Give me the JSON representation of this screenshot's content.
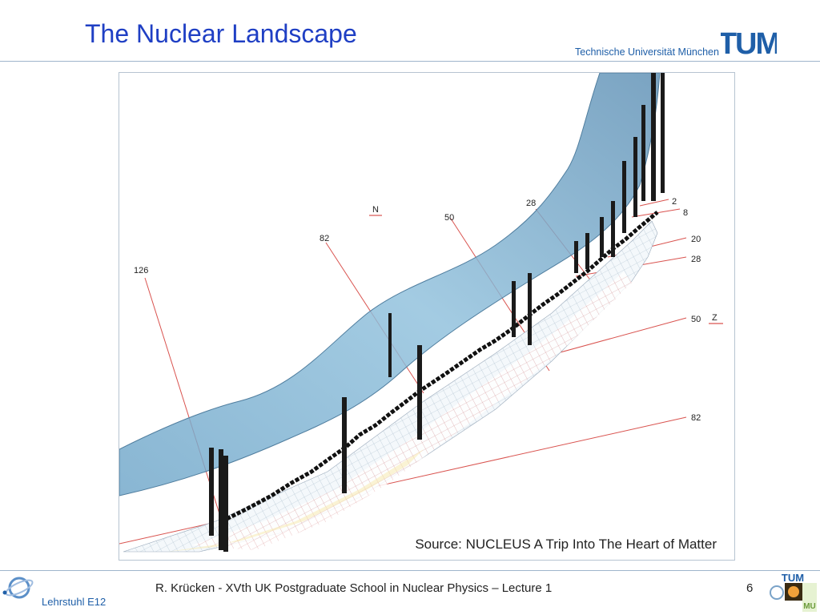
{
  "header": {
    "title": "The Nuclear Landscape",
    "university": "Technische Universität München",
    "logo_text": "TUM"
  },
  "figure": {
    "axis_n": "N",
    "axis_z": "Z",
    "magic_n": [
      "126",
      "82",
      "50",
      "28"
    ],
    "magic_z": [
      "2",
      "8",
      "20",
      "28",
      "50",
      "82"
    ],
    "source": "Source: NUCLEUS   A Trip Into The Heart of Matter"
  },
  "footer": {
    "text": "R. Krücken   -   XVth UK Postgraduate School in Nuclear Physics – Lecture 1",
    "page": "6",
    "chair": "Lehrstuhl E12"
  },
  "colors": {
    "title": "#1f3fc4",
    "surface": "#7fb3d3",
    "grid_red": "#d9534f",
    "stable_black": "#111111"
  }
}
